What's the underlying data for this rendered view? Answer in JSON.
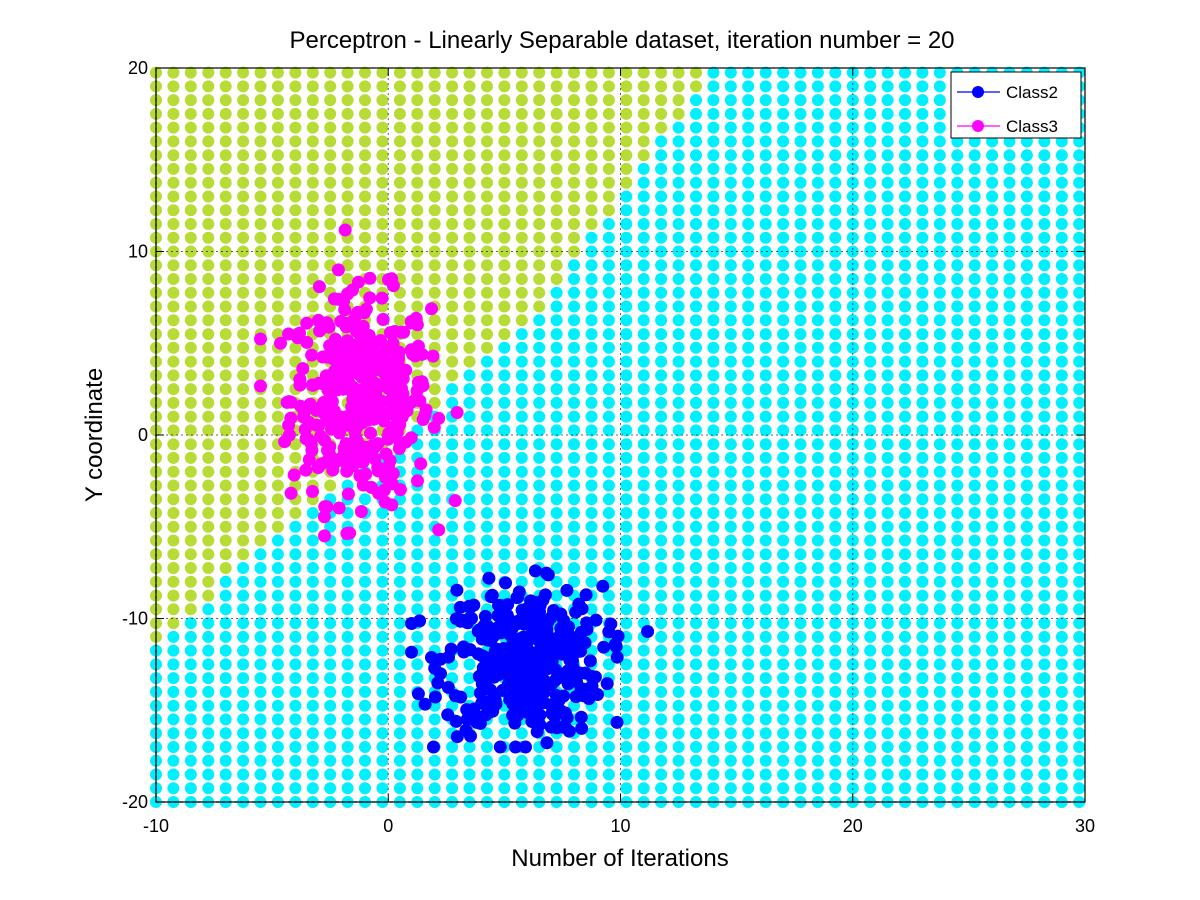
{
  "chart_data": {
    "type": "scatter",
    "title": "Perceptron - Linearly Separable dataset, iteration number = 20",
    "xlabel": "Number of Iterations",
    "ylabel": "Y coordinate",
    "xlim": [
      -10,
      30
    ],
    "ylim": [
      -20,
      20
    ],
    "xticks": [
      -10,
      0,
      10,
      20,
      30
    ],
    "yticks": [
      -20,
      -10,
      0,
      10,
      20
    ],
    "grid": "dotted at ticks",
    "legend_position": "top-right",
    "legend": [
      {
        "label": "Class2",
        "color": "#0000ff"
      },
      {
        "label": "Class3",
        "color": "#ff00ff"
      }
    ],
    "background_grid": {
      "x_step": 0.75,
      "y_step": 0.75,
      "boundary": "upper-left region classified as Class3; boundary passes approximately through (-7, -8), (6, 6) and (14, 20)",
      "region_colors": {
        "upper_left": "#b6dc35",
        "lower_right": "#00f0ff"
      }
    },
    "series": [
      {
        "name": "Class2",
        "color": "#0000ff",
        "n_points": 400,
        "center": [
          5.8,
          -12.3
        ],
        "std": [
          1.7,
          2.0
        ],
        "range_x": [
          1,
          11.5
        ],
        "range_y": [
          -17,
          -5.5
        ]
      },
      {
        "name": "Class3",
        "color": "#ff00ff",
        "n_points": 400,
        "center": [
          -1.2,
          2.0
        ],
        "std": [
          1.5,
          2.8
        ],
        "range_x": [
          -5.5,
          3
        ],
        "range_y": [
          -5.5,
          13
        ]
      }
    ]
  },
  "colors": {
    "class3_region": "#b6dc35",
    "class2_region": "#00f0ff",
    "class2": "#0000ff",
    "class3": "#ff00ff"
  }
}
